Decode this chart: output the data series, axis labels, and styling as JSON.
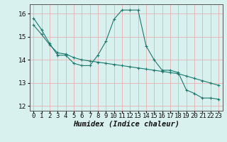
{
  "xlabel": "Humidex (Indice chaleur)",
  "ylabel": "",
  "background_color": "#d8f0ee",
  "grid_color": "#e8b0b0",
  "line_color": "#1a7a6e",
  "xlim": [
    -0.5,
    23.5
  ],
  "ylim": [
    11.8,
    16.4
  ],
  "yticks": [
    12,
    13,
    14,
    15,
    16
  ],
  "xticks": [
    0,
    1,
    2,
    3,
    4,
    5,
    6,
    7,
    8,
    9,
    10,
    11,
    12,
    13,
    14,
    15,
    16,
    17,
    18,
    19,
    20,
    21,
    22,
    23
  ],
  "xtick_labels": [
    "0",
    "1",
    "2",
    "3",
    "4",
    "5",
    "6",
    "7",
    "8",
    "9",
    "10",
    "11",
    "12",
    "13",
    "14",
    "15",
    "16",
    "17",
    "18",
    "19",
    "20",
    "21",
    "22",
    "23"
  ],
  "series1_x": [
    0,
    1,
    2,
    3,
    4,
    5,
    6,
    7,
    8,
    9,
    10,
    11,
    12,
    13,
    14,
    15,
    16,
    17,
    18,
    19,
    20,
    21,
    22,
    23
  ],
  "series1_y": [
    15.8,
    15.3,
    14.7,
    14.2,
    14.2,
    13.85,
    13.75,
    13.75,
    14.2,
    14.8,
    15.75,
    16.15,
    16.15,
    16.15,
    14.6,
    14.0,
    13.55,
    13.55,
    13.45,
    12.7,
    12.55,
    12.35,
    12.35,
    12.3
  ],
  "series2_x": [
    0,
    1,
    2,
    3,
    4,
    5,
    6,
    7,
    8,
    9,
    10,
    11,
    12,
    13,
    14,
    15,
    16,
    17,
    18,
    19,
    20,
    21,
    22,
    23
  ],
  "series2_y": [
    15.5,
    15.1,
    14.65,
    14.3,
    14.25,
    14.1,
    14.0,
    13.95,
    13.9,
    13.85,
    13.8,
    13.75,
    13.7,
    13.65,
    13.6,
    13.55,
    13.5,
    13.45,
    13.4,
    13.3,
    13.2,
    13.1,
    13.0,
    12.9
  ],
  "marker": "+",
  "markersize": 3,
  "linewidth": 0.8,
  "tick_fontsize": 6.5,
  "xlabel_fontsize": 7.5
}
